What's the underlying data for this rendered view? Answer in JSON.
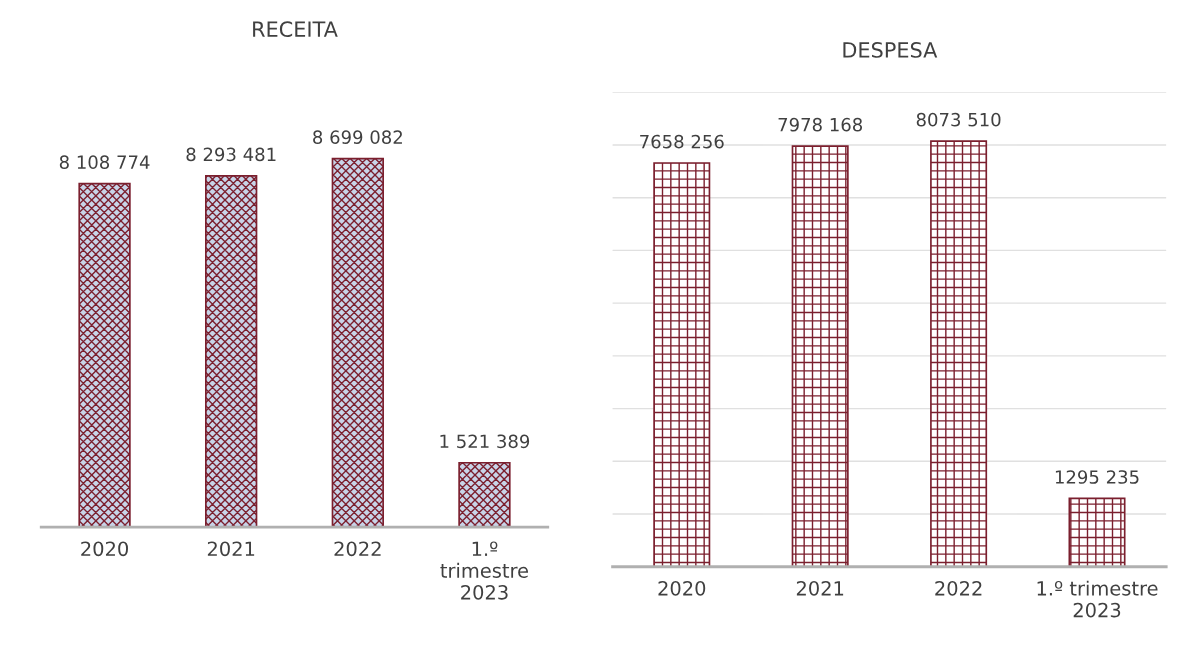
{
  "chart_data": [
    {
      "type": "bar",
      "title": "RECEITA",
      "categories": [
        "2020",
        "2021",
        "2022",
        "1.º\ntrimestre\n2023"
      ],
      "values": [
        8108774,
        8293481,
        8699082,
        1521389
      ],
      "value_labels": [
        "8 108 774",
        "8 293 481",
        "8 699 082",
        "1 521 389"
      ],
      "color": "#7b1f2e",
      "tick_labels": "x",
      "grid": false,
      "legend": false
    },
    {
      "type": "bar",
      "title": "DESPESA",
      "categories": [
        "2020",
        "2021",
        "2022",
        "1.º trimestre\n2023"
      ],
      "values": [
        7658256,
        7978168,
        8073510,
        1295235
      ],
      "value_labels": [
        "7658 256",
        "7978 168",
        "8073 510",
        "1295 235"
      ],
      "color": "#7b1f2e",
      "ylim": [
        0,
        9000000
      ],
      "yticks": [
        {
          "value": 0,
          "label": null
        },
        {
          "value": 1000000,
          "label": null
        },
        {
          "value": 2000000,
          "label": null
        },
        {
          "value": 3000000,
          "label": null
        },
        {
          "value": 4000000,
          "label": null
        },
        {
          "value": 5000000,
          "label": null
        },
        {
          "value": 6000000,
          "label": null
        },
        {
          "value": 7000000,
          "label": null
        },
        {
          "value": 8000000,
          "label": null
        },
        {
          "value": 9000000,
          "label": null
        }
      ],
      "tick_labels": "x",
      "grid": "y",
      "legend": false
    }
  ]
}
